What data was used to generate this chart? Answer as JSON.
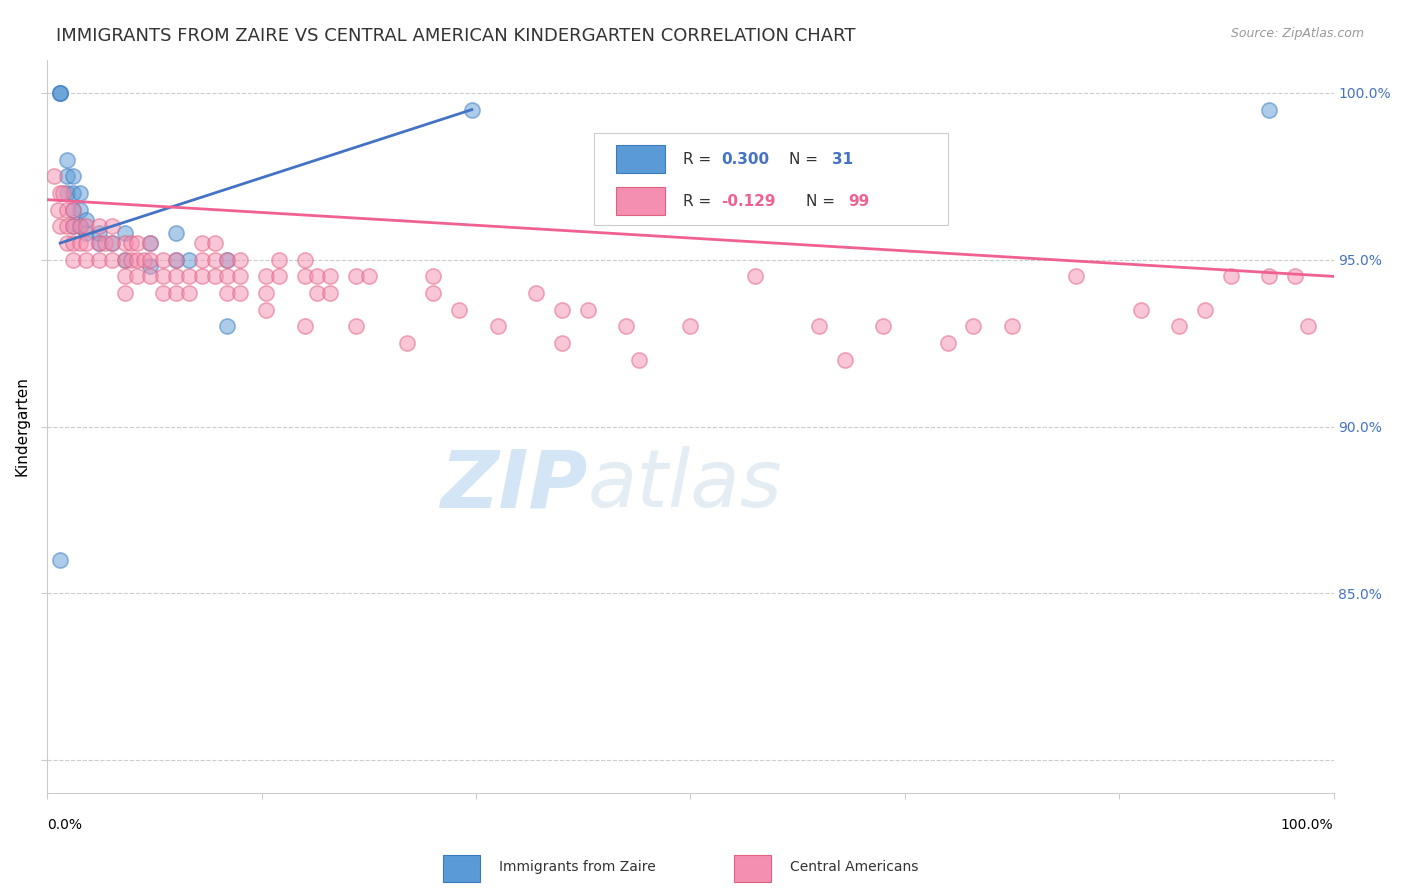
{
  "title": "IMMIGRANTS FROM ZAIRE VS CENTRAL AMERICAN KINDERGARTEN CORRELATION CHART",
  "source": "Source: ZipAtlas.com",
  "ylabel": "Kindergarten",
  "xlim": [
    0,
    1
  ],
  "ylim": [
    0.79,
    1.01
  ],
  "ytick_positions": [
    0.8,
    0.85,
    0.9,
    0.95,
    1.0
  ],
  "ytick_labels": [
    "",
    "85.0%",
    "90.0%",
    "95.0%",
    "100.0%"
  ],
  "watermark_zip": "ZIP",
  "watermark_atlas": "atlas",
  "blue_scatter_x": [
    0.01,
    0.01,
    0.01,
    0.015,
    0.015,
    0.015,
    0.02,
    0.02,
    0.02,
    0.02,
    0.025,
    0.025,
    0.025,
    0.03,
    0.03,
    0.04,
    0.04,
    0.05,
    0.06,
    0.06,
    0.08,
    0.08,
    0.1,
    0.1,
    0.11,
    0.14,
    0.14,
    0.33,
    0.01,
    0.95
  ],
  "blue_scatter_y": [
    1.0,
    1.0,
    1.0,
    0.98,
    0.975,
    0.97,
    0.975,
    0.97,
    0.965,
    0.96,
    0.97,
    0.965,
    0.96,
    0.962,
    0.958,
    0.955,
    0.958,
    0.955,
    0.958,
    0.95,
    0.955,
    0.948,
    0.958,
    0.95,
    0.95,
    0.95,
    0.93,
    0.995,
    0.86,
    0.995
  ],
  "pink_scatter_x": [
    0.005,
    0.008,
    0.01,
    0.01,
    0.012,
    0.015,
    0.015,
    0.015,
    0.02,
    0.02,
    0.02,
    0.02,
    0.025,
    0.025,
    0.03,
    0.03,
    0.03,
    0.04,
    0.04,
    0.04,
    0.045,
    0.05,
    0.05,
    0.05,
    0.06,
    0.06,
    0.06,
    0.06,
    0.065,
    0.065,
    0.07,
    0.07,
    0.07,
    0.075,
    0.08,
    0.08,
    0.08,
    0.09,
    0.09,
    0.09,
    0.1,
    0.1,
    0.1,
    0.11,
    0.11,
    0.12,
    0.12,
    0.12,
    0.13,
    0.13,
    0.13,
    0.14,
    0.14,
    0.14,
    0.15,
    0.15,
    0.15,
    0.17,
    0.17,
    0.17,
    0.18,
    0.18,
    0.2,
    0.2,
    0.2,
    0.21,
    0.21,
    0.22,
    0.22,
    0.24,
    0.24,
    0.25,
    0.28,
    0.3,
    0.3,
    0.32,
    0.35,
    0.38,
    0.4,
    0.4,
    0.42,
    0.45,
    0.46,
    0.5,
    0.55,
    0.6,
    0.62,
    0.65,
    0.7,
    0.72,
    0.75,
    0.8,
    0.85,
    0.88,
    0.9,
    0.92,
    0.95,
    0.97,
    0.98
  ],
  "pink_scatter_y": [
    0.975,
    0.965,
    0.97,
    0.96,
    0.97,
    0.965,
    0.96,
    0.955,
    0.965,
    0.96,
    0.955,
    0.95,
    0.96,
    0.955,
    0.96,
    0.955,
    0.95,
    0.96,
    0.955,
    0.95,
    0.955,
    0.96,
    0.955,
    0.95,
    0.955,
    0.95,
    0.945,
    0.94,
    0.955,
    0.95,
    0.955,
    0.95,
    0.945,
    0.95,
    0.955,
    0.95,
    0.945,
    0.95,
    0.945,
    0.94,
    0.95,
    0.945,
    0.94,
    0.945,
    0.94,
    0.955,
    0.95,
    0.945,
    0.955,
    0.95,
    0.945,
    0.95,
    0.945,
    0.94,
    0.95,
    0.945,
    0.94,
    0.945,
    0.94,
    0.935,
    0.95,
    0.945,
    0.95,
    0.945,
    0.93,
    0.945,
    0.94,
    0.945,
    0.94,
    0.945,
    0.93,
    0.945,
    0.925,
    0.945,
    0.94,
    0.935,
    0.93,
    0.94,
    0.935,
    0.925,
    0.935,
    0.93,
    0.92,
    0.93,
    0.945,
    0.93,
    0.92,
    0.93,
    0.925,
    0.93,
    0.93,
    0.945,
    0.935,
    0.93,
    0.935,
    0.945,
    0.945,
    0.945,
    0.93
  ],
  "blue_line_x": [
    0.01,
    0.33
  ],
  "blue_line_y": [
    0.955,
    0.995
  ],
  "pink_line_x": [
    0.0,
    1.0
  ],
  "pink_line_y": [
    0.968,
    0.945
  ],
  "scatter_size": 120,
  "scatter_alpha": 0.5,
  "scatter_linewidth": 1.2,
  "blue_color": "#5b9bd5",
  "blue_edge_color": "#3a7abf",
  "pink_color": "#f48fb1",
  "pink_edge_color": "#e06080",
  "blue_line_color": "#4472c4",
  "pink_line_color": "#f06090",
  "background_color": "#ffffff",
  "grid_color": "#cccccc",
  "title_fontsize": 13,
  "axis_label_fontsize": 11,
  "tick_fontsize": 10,
  "legend_fontsize": 11,
  "source_fontsize": 9,
  "right_tick_color": "#4472c4"
}
